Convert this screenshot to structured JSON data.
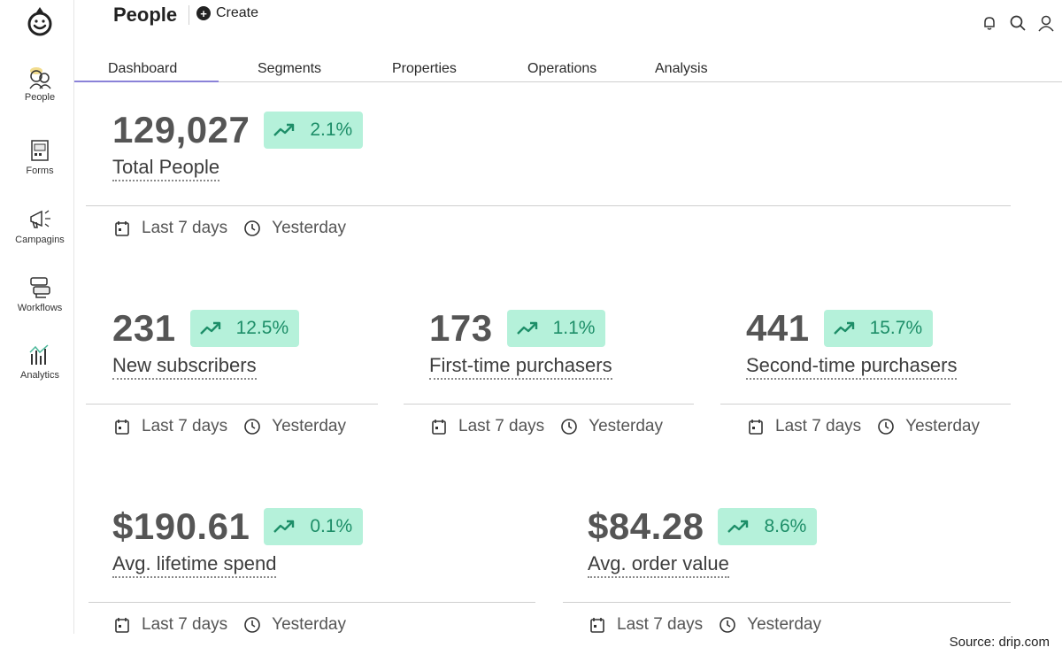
{
  "header": {
    "title": "People",
    "create_label": "Create"
  },
  "sidebar": {
    "items": [
      {
        "label": "People",
        "icon": "people-icon"
      },
      {
        "label": "Forms",
        "icon": "forms-icon"
      },
      {
        "label": "Campagins",
        "icon": "megaphone-icon"
      },
      {
        "label": "Workflows",
        "icon": "workflows-icon"
      },
      {
        "label": "Analytics",
        "icon": "analytics-icon"
      }
    ]
  },
  "tabs": [
    {
      "label": "Dashboard",
      "active": true
    },
    {
      "label": "Segments"
    },
    {
      "label": "Properties"
    },
    {
      "label": "Operations"
    },
    {
      "label": "Analysis"
    }
  ],
  "metrics": {
    "total_people": {
      "value": "129,027",
      "change": "2.1%",
      "label": "Total People"
    },
    "new_subscribers": {
      "value": "231",
      "change": "12.5%",
      "label": "New subscribers"
    },
    "first_time": {
      "value": "173",
      "change": "1.1%",
      "label": "First-time purchasers"
    },
    "second_time": {
      "value": "441",
      "change": "15.7%",
      "label": "Second-time purchasers"
    },
    "lifetime_spend": {
      "value": "$190.61",
      "change": "0.1%",
      "label": "Avg. lifetime spend"
    },
    "order_value": {
      "value": "$84.28",
      "change": "8.6%",
      "label": "Avg. order value"
    }
  },
  "period": {
    "range": "Last 7 days",
    "compare": "Yesterday"
  },
  "colors": {
    "badge_bg": "#b5f1da",
    "badge_text": "#1d8e68",
    "active_tab": "#8a82d8"
  },
  "source": "Source:  drip.com"
}
